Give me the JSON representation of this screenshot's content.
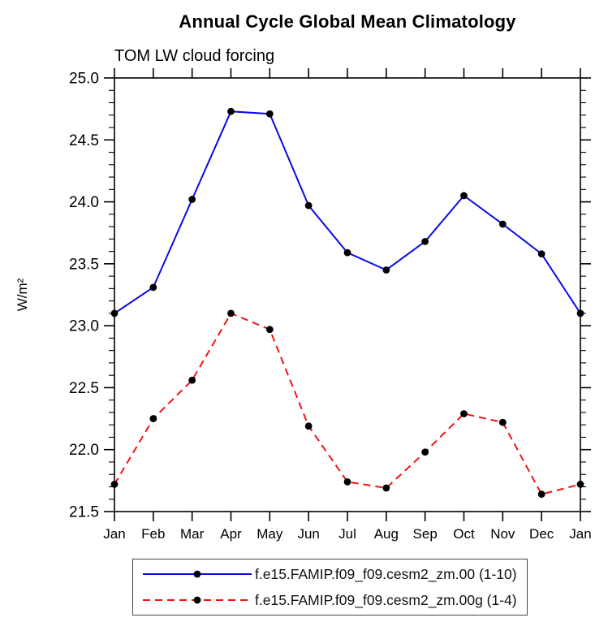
{
  "page": {
    "background": "#ffffff"
  },
  "chart_data": {
    "type": "line",
    "title": "Annual Cycle Global Mean Climatology",
    "subtitle": "TOM LW cloud forcing",
    "ylabel": "W/m²",
    "xlabel": "",
    "categories": [
      "Jan",
      "Feb",
      "Mar",
      "Apr",
      "May",
      "Jun",
      "Jul",
      "Aug",
      "Sep",
      "Oct",
      "Nov",
      "Dec",
      "Jan"
    ],
    "ylim": [
      21.5,
      25.0
    ],
    "ytick_major_step": 0.5,
    "ytick_minor_step": 0.1,
    "ytick_labels": [
      "21.5",
      "22.0",
      "22.5",
      "23.0",
      "23.5",
      "24.0",
      "24.5",
      "25.0"
    ],
    "grid": false,
    "legend_position": "bottom",
    "frame_color": "#000000",
    "series": [
      {
        "name": "f.e15.FAMIP.f09_f09.cesm2_zm.00 (1-10)",
        "color": "#0a0ae8",
        "line_style": "solid",
        "marker": "circle",
        "marker_color": "#000000",
        "values": [
          23.1,
          23.31,
          24.02,
          24.73,
          24.71,
          23.97,
          23.59,
          23.45,
          23.68,
          24.05,
          23.82,
          23.58,
          23.1
        ]
      },
      {
        "name": "f.e15.FAMIP.f09_f09.cesm2_zm.00g (1-4)",
        "color": "#f21212",
        "line_style": "dashed",
        "marker": "circle",
        "marker_color": "#000000",
        "values": [
          21.72,
          22.25,
          22.56,
          23.1,
          22.97,
          22.19,
          21.74,
          21.69,
          21.98,
          22.29,
          22.22,
          21.64,
          21.72
        ]
      }
    ]
  }
}
